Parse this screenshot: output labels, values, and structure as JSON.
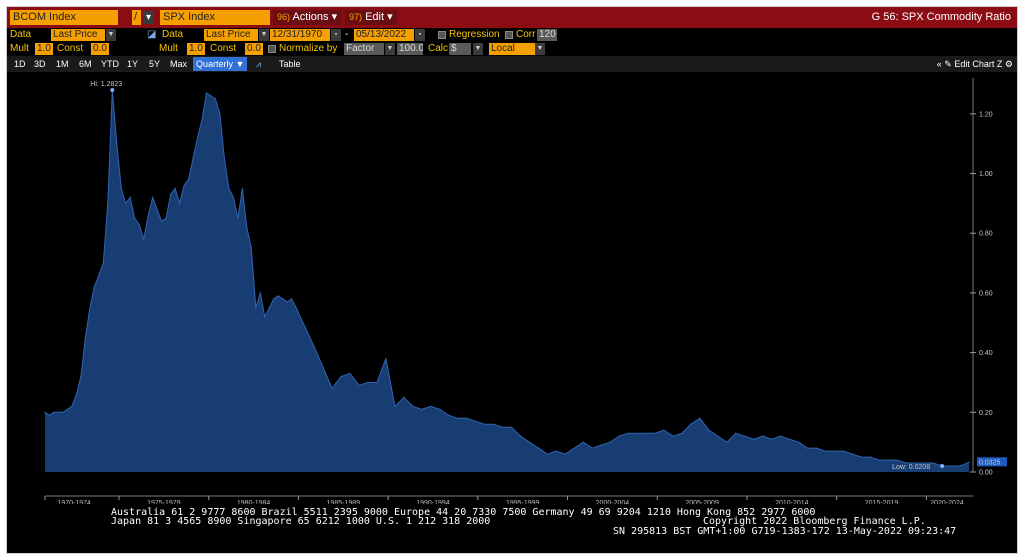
{
  "row1": {
    "security_a": "BCOM Index",
    "divider": "/",
    "security_b": "SPX Index",
    "actions_num": "96)",
    "actions_label": "Actions",
    "edit_num": "97)",
    "edit_label": "Edit",
    "window_title": "G 56: SPX Commodity Ratio"
  },
  "row2": {
    "data_label": "Data",
    "data_value": "Last Price",
    "data_label_b": "Data",
    "data_value_b": "Last Price",
    "start_date": "12/31/1970",
    "date_sep": "-",
    "end_date": "05/13/2022",
    "regression_label": "Regression",
    "corr_label": "Corr",
    "corr_value": "120"
  },
  "row3": {
    "mult_label": "Mult",
    "mult_value": "1.0",
    "const_label": "Const",
    "const_value": "0.0",
    "mult_label_b": "Mult",
    "mult_value_b": "1.0",
    "const_label_b": "Const",
    "const_value_b": "0.0",
    "normalize_label": "Normalize by",
    "normalize_value": "Factor",
    "factor_value": "100.0",
    "calc_label": "Calc",
    "calc_value": "$",
    "local_value": "Local"
  },
  "row4": {
    "periods": [
      "1D",
      "3D",
      "1M",
      "6M",
      "YTD",
      "1Y",
      "5Y",
      "Max"
    ],
    "frequency": "Quarterly",
    "table_label": "Table",
    "edit_chart_label": "Edit Chart"
  },
  "chart_data": {
    "type": "area",
    "x_unit": "quarter",
    "x": [
      "1970Q4",
      "1971Q1",
      "1971Q2",
      "1971Q3",
      "1971Q4",
      "1972Q1",
      "1972Q2",
      "1972Q3",
      "1972Q4",
      "1973Q1",
      "1973Q2",
      "1973Q3",
      "1973Q4",
      "1974Q1",
      "1974Q2",
      "1974Q3",
      "1974Q4",
      "1975Q1",
      "1975Q2",
      "1975Q3",
      "1975Q4",
      "1976Q1",
      "1976Q2",
      "1976Q3",
      "1976Q4",
      "1977Q1",
      "1977Q2",
      "1977Q3",
      "1977Q4",
      "1978Q1",
      "1978Q2",
      "1978Q3",
      "1978Q4",
      "1979Q1",
      "1979Q2",
      "1979Q3",
      "1979Q4",
      "1980Q1",
      "1980Q2",
      "1980Q3",
      "1980Q4",
      "1981Q1",
      "1981Q2",
      "1981Q3",
      "1981Q4",
      "1982Q1",
      "1982Q2",
      "1982Q3",
      "1982Q4",
      "1983Q1",
      "1983Q2",
      "1983Q3",
      "1983Q4",
      "1984Q1",
      "1984Q2",
      "1984Q3",
      "1984Q4",
      "1985Q4",
      "1986Q2",
      "1986Q4",
      "1987Q2",
      "1987Q4",
      "1988Q2",
      "1988Q4",
      "1989Q2",
      "1989Q4",
      "1990Q2",
      "1990Q4",
      "1991Q2",
      "1991Q4",
      "1992Q2",
      "1992Q4",
      "1993Q2",
      "1993Q4",
      "1994Q2",
      "1994Q4",
      "1995Q2",
      "1995Q4",
      "1996Q2",
      "1996Q4",
      "1997Q2",
      "1997Q4",
      "1998Q2",
      "1998Q4",
      "1999Q2",
      "1999Q4",
      "2000Q2",
      "2000Q4",
      "2001Q2",
      "2001Q4",
      "2002Q2",
      "2002Q4",
      "2003Q2",
      "2003Q4",
      "2004Q2",
      "2004Q4",
      "2005Q2",
      "2005Q4",
      "2006Q2",
      "2006Q4",
      "2007Q2",
      "2007Q4",
      "2008Q2",
      "2008Q4",
      "2009Q2",
      "2009Q4",
      "2010Q2",
      "2010Q4",
      "2011Q2",
      "2011Q4",
      "2012Q2",
      "2012Q4",
      "2013Q2",
      "2013Q4",
      "2014Q2",
      "2014Q4",
      "2015Q2",
      "2015Q4",
      "2016Q2",
      "2016Q4",
      "2017Q2",
      "2017Q4",
      "2018Q2",
      "2018Q4",
      "2019Q2",
      "2019Q4",
      "2020Q2",
      "2020Q4",
      "2021Q2",
      "2021Q4",
      "2022Q2"
    ],
    "y": [
      0.2,
      0.19,
      0.2,
      0.2,
      0.2,
      0.21,
      0.22,
      0.26,
      0.32,
      0.45,
      0.55,
      0.62,
      0.66,
      0.7,
      0.9,
      1.28,
      1.1,
      0.95,
      0.9,
      0.92,
      0.85,
      0.83,
      0.78,
      0.86,
      0.92,
      0.88,
      0.84,
      0.85,
      0.93,
      0.95,
      0.9,
      0.96,
      0.98,
      1.05,
      1.12,
      1.18,
      1.27,
      1.26,
      1.25,
      1.2,
      1.05,
      0.95,
      0.92,
      0.85,
      0.95,
      0.82,
      0.75,
      0.55,
      0.6,
      0.52,
      0.55,
      0.58,
      0.59,
      0.58,
      0.57,
      0.58,
      0.55,
      0.42,
      0.35,
      0.28,
      0.32,
      0.33,
      0.29,
      0.3,
      0.3,
      0.38,
      0.22,
      0.25,
      0.22,
      0.21,
      0.22,
      0.21,
      0.19,
      0.18,
      0.18,
      0.17,
      0.16,
      0.16,
      0.15,
      0.15,
      0.12,
      0.1,
      0.08,
      0.06,
      0.07,
      0.06,
      0.08,
      0.1,
      0.08,
      0.09,
      0.1,
      0.12,
      0.13,
      0.13,
      0.13,
      0.13,
      0.14,
      0.12,
      0.13,
      0.16,
      0.18,
      0.14,
      0.12,
      0.1,
      0.13,
      0.12,
      0.11,
      0.12,
      0.11,
      0.12,
      0.11,
      0.1,
      0.08,
      0.08,
      0.07,
      0.07,
      0.07,
      0.06,
      0.05,
      0.05,
      0.04,
      0.04,
      0.04,
      0.03,
      0.03,
      0.03,
      0.03,
      0.02,
      0.02,
      0.02,
      0.0325
    ],
    "ylim": [
      0.0,
      1.3
    ],
    "y_ticks": [
      "0.00",
      "0.20",
      "0.40",
      "0.60",
      "0.80",
      "1.00",
      "1.20"
    ],
    "x_ticks": [
      "1970-1974",
      "1975-1979",
      "1980-1984",
      "1985-1989",
      "1990-1994",
      "1995-1999",
      "2000-2004",
      "2005-2009",
      "2010-2014",
      "2015-2019",
      "2020-2024"
    ],
    "hi_label": "Hi: 1.2823",
    "low_label": "Low: 0.0208",
    "last_label": "0.0325",
    "grid": false
  },
  "footer": {
    "line1": "Australia 61 2 9777 8600 Brazil 5511 2395 9000 Europe 44 20 7330 7500 Germany 49 69 9204 1210 Hong Kong 852 2977 6000",
    "line2": "Japan 81 3 4565 8900        Singapore 65 6212 1000        U.S. 1 212 318 2000",
    "copyright": "Copyright 2022 Bloomberg Finance L.P.",
    "line3": "SN 295813 BST  GMT+1:00 G719-1383-172 13-May-2022 09:23:47"
  },
  "colors": {
    "title_bar": "#8b0d13",
    "field_orange": "#f59f00",
    "label_yellow": "#f5c400",
    "area_fill": "#173d73",
    "area_line": "#2f64b0",
    "selected_period": "#2f6fd6"
  }
}
